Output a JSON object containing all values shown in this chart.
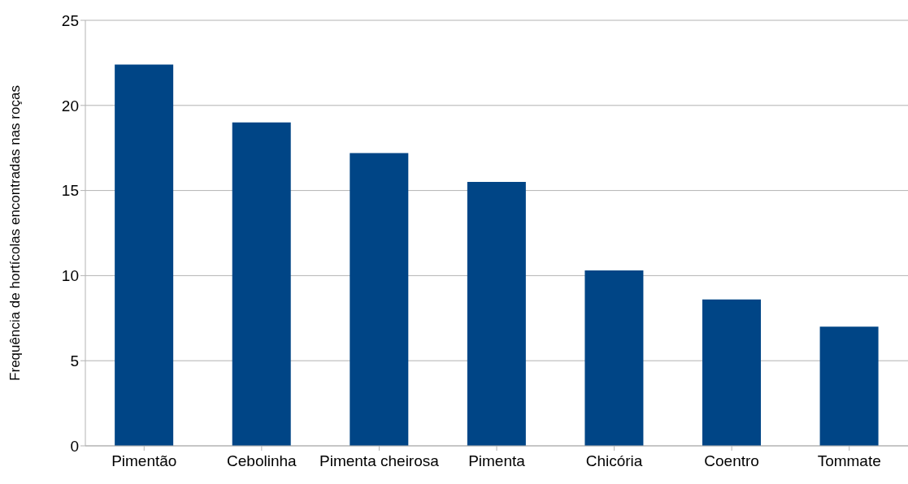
{
  "chart_data": {
    "type": "bar",
    "ylabel": "Frequência de hortícolas encontradas nas roças",
    "categories": [
      "Pimentão",
      "Cebolinha",
      "Pimenta cheirosa",
      "Pimenta",
      "Chicória",
      "Coentro",
      "Tommate"
    ],
    "values": [
      22.4,
      19.0,
      17.2,
      15.5,
      10.3,
      8.6,
      7.0
    ],
    "color": "#004586",
    "ylim": [
      0,
      25
    ],
    "yticks": [
      0,
      5,
      10,
      15,
      20,
      25
    ],
    "grid": "y"
  }
}
